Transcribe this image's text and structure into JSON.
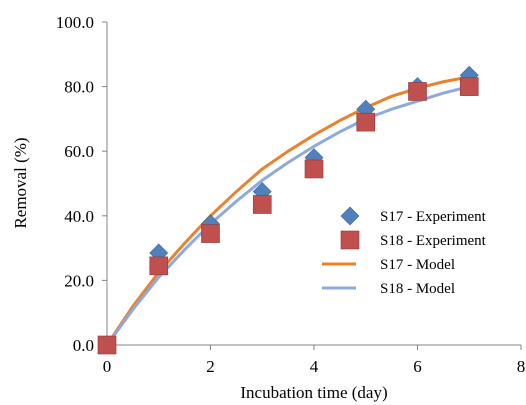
{
  "chart_data": {
    "type": "scatter",
    "xlabel": "Incubation time (day)",
    "ylabel": "Removal (%)",
    "xlim": [
      0,
      8
    ],
    "ylim": [
      0,
      100
    ],
    "x_ticks": [
      "0",
      "2",
      "4",
      "6",
      "8"
    ],
    "y_ticks": [
      "0.0",
      "20.0",
      "40.0",
      "60.0",
      "80.0",
      "100.0"
    ],
    "grid": false,
    "legend_position": "right",
    "series": [
      {
        "name": "S17 - Experiment",
        "kind": "marker",
        "marker": "diamond",
        "color": "#4F81BD",
        "x": [
          0,
          1,
          2,
          3,
          4,
          5,
          6,
          7
        ],
        "y": [
          0,
          28.5,
          37.5,
          47.5,
          58.0,
          73.0,
          80.0,
          83.5
        ]
      },
      {
        "name": "S18 - Experiment",
        "kind": "marker",
        "marker": "square",
        "color": "#C0504D",
        "x": [
          0,
          1,
          2,
          3,
          4,
          5,
          6,
          7
        ],
        "y": [
          0,
          24.5,
          34.5,
          43.5,
          54.5,
          69.0,
          78.5,
          80.0
        ]
      },
      {
        "name": "S17 - Model",
        "kind": "line",
        "color": "#E8822F",
        "x": [
          0,
          0.5,
          1,
          1.5,
          2,
          2.5,
          3,
          3.5,
          4,
          4.5,
          5,
          5.5,
          6,
          6.5,
          7
        ],
        "y": [
          0,
          12.0,
          22.5,
          31.5,
          40.0,
          47.5,
          54.5,
          60.0,
          65.0,
          69.5,
          73.5,
          77.0,
          79.5,
          81.5,
          83.0
        ]
      },
      {
        "name": "S18 - Model",
        "kind": "line",
        "color": "#8EA9DB",
        "x": [
          0,
          0.5,
          1,
          1.5,
          2,
          2.5,
          3,
          3.5,
          4,
          4.5,
          5,
          5.5,
          6,
          6.5,
          7
        ],
        "y": [
          0,
          11.0,
          21.0,
          29.5,
          37.5,
          44.5,
          51.0,
          56.5,
          61.5,
          66.0,
          70.0,
          73.0,
          75.5,
          78.0,
          80.0
        ]
      }
    ]
  }
}
